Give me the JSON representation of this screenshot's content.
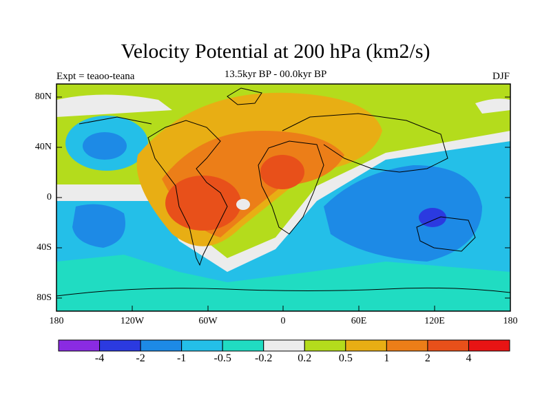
{
  "title": "Velocity Potential at 200 hPa (km2/s)",
  "subtitle_center": "13.5kyr BP - 00.0kyr BP",
  "subtitle_left": "Expt = teaoo-teana",
  "subtitle_right": "DJF",
  "y_ticks": [
    "80N",
    "40N",
    "0",
    "40S",
    "80S"
  ],
  "x_ticks": [
    "180",
    "120W",
    "60W",
    "0",
    "60E",
    "120E",
    "180"
  ],
  "colorbar": {
    "labels": [
      "-4",
      "-2",
      "-1",
      "-0.5",
      "-0.2",
      "0.2",
      "0.5",
      "1",
      "2",
      "4"
    ],
    "colors": [
      "#8a2be2",
      "#2b3ae0",
      "#1d8ae6",
      "#24bfe8",
      "#20dcc2",
      "#ececec",
      "#b4dc1c",
      "#e8ae14",
      "#ec7e18",
      "#e8501a",
      "#e81414"
    ]
  },
  "colors": {
    "land_outline": "#000000"
  }
}
